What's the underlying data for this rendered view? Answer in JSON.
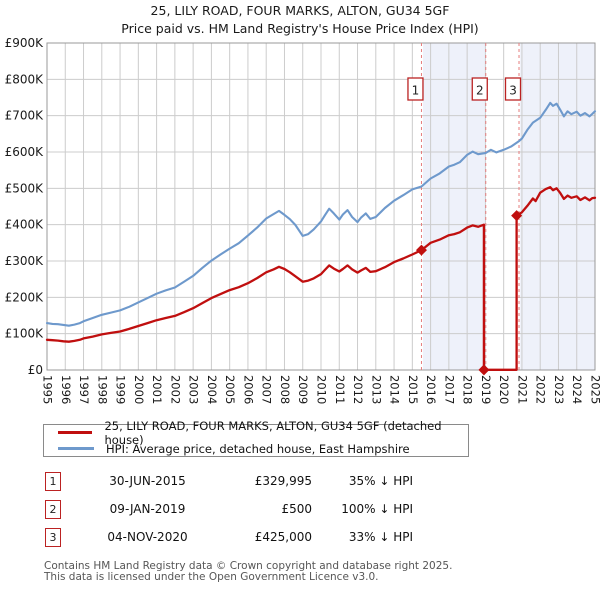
{
  "title": {
    "line1": "25, LILY ROAD, FOUR MARKS, ALTON, GU34 5GF",
    "line2": "Price paid vs. HM Land Registry's House Price Index (HPI)"
  },
  "chart_data": {
    "type": "line",
    "title": "25, LILY ROAD, FOUR MARKS, ALTON, GU34 5GF — Price paid vs. HPI",
    "xlabel": "",
    "ylabel": "",
    "xlim": [
      1995,
      2025
    ],
    "ylim": [
      0,
      900
    ],
    "values_unit": "GBP thousands",
    "grid": true,
    "x_ticks": [
      1995,
      1996,
      1997,
      1998,
      1999,
      2000,
      2001,
      2002,
      2003,
      2004,
      2005,
      2006,
      2007,
      2008,
      2009,
      2010,
      2011,
      2012,
      2013,
      2014,
      2015,
      2016,
      2017,
      2018,
      2019,
      2020,
      2021,
      2022,
      2023,
      2024,
      2025
    ],
    "y_ticks": [
      "£0",
      "£100K",
      "£200K",
      "£300K",
      "£400K",
      "£500K",
      "£600K",
      "£700K",
      "£800K",
      "£900K"
    ],
    "colors": {
      "property": "#c00f0f",
      "hpi": "#6e99cc",
      "shade": "#eef1fa",
      "sale_dash": "#e57d7d",
      "sale_box_border": "#bb2222",
      "grid": "#cccccc",
      "plot_border": "#999999",
      "axis_text": "#1a1a1a"
    },
    "shaded_regions": [
      [
        2015.58,
        2019.02
      ],
      [
        2020.9,
        2025.0
      ]
    ],
    "series": [
      {
        "name": "25, LILY ROAD, FOUR MARKS, ALTON, GU34 5GF (detached house)",
        "color": "#c00f0f",
        "width": 2.3,
        "points": [
          [
            1995,
            83
          ],
          [
            1995.3,
            82
          ],
          [
            1995.6,
            81
          ],
          [
            1995.9,
            79
          ],
          [
            1996.2,
            78
          ],
          [
            1996.5,
            80
          ],
          [
            1996.8,
            83
          ],
          [
            1997,
            87
          ],
          [
            1997.5,
            92
          ],
          [
            1998,
            98
          ],
          [
            1998.5,
            102
          ],
          [
            1999,
            106
          ],
          [
            1999.5,
            113
          ],
          [
            2000,
            121
          ],
          [
            2000.5,
            129
          ],
          [
            2001,
            137
          ],
          [
            2001.5,
            143
          ],
          [
            2002,
            149
          ],
          [
            2002.5,
            159
          ],
          [
            2003,
            170
          ],
          [
            2003.5,
            184
          ],
          [
            2004,
            198
          ],
          [
            2004.5,
            209
          ],
          [
            2005,
            220
          ],
          [
            2005.5,
            228
          ],
          [
            2006,
            239
          ],
          [
            2006.5,
            253
          ],
          [
            2007,
            269
          ],
          [
            2007.4,
            277
          ],
          [
            2007.7,
            284
          ],
          [
            2008,
            278
          ],
          [
            2008.3,
            269
          ],
          [
            2008.6,
            258
          ],
          [
            2009,
            243
          ],
          [
            2009.3,
            246
          ],
          [
            2009.6,
            252
          ],
          [
            2010,
            264
          ],
          [
            2010.2,
            275
          ],
          [
            2010.45,
            288
          ],
          [
            2010.7,
            279
          ],
          [
            2011,
            271
          ],
          [
            2011.2,
            278
          ],
          [
            2011.45,
            288
          ],
          [
            2011.7,
            277
          ],
          [
            2012,
            268
          ],
          [
            2012.2,
            274
          ],
          [
            2012.45,
            281
          ],
          [
            2012.7,
            270
          ],
          [
            2013,
            272
          ],
          [
            2013.5,
            283
          ],
          [
            2014,
            297
          ],
          [
            2014.5,
            307
          ],
          [
            2015,
            318
          ],
          [
            2015.5,
            330
          ],
          [
            2016,
            350
          ],
          [
            2016.5,
            359
          ],
          [
            2017,
            371
          ],
          [
            2017.3,
            374
          ],
          [
            2017.6,
            379
          ],
          [
            2018,
            392
          ],
          [
            2018.3,
            398
          ],
          [
            2018.6,
            394
          ],
          [
            2018.92,
            400
          ],
          [
            2018.92,
            0.5
          ],
          [
            2019.5,
            0.5
          ],
          [
            2020.2,
            0.5
          ],
          [
            2020.71,
            0.5
          ],
          [
            2020.71,
            425
          ],
          [
            2021,
            434
          ],
          [
            2021.3,
            452
          ],
          [
            2021.6,
            472
          ],
          [
            2021.75,
            465
          ],
          [
            2022,
            488
          ],
          [
            2022.3,
            498
          ],
          [
            2022.55,
            503
          ],
          [
            2022.7,
            495
          ],
          [
            2022.9,
            500
          ],
          [
            2023.1,
            487
          ],
          [
            2023.3,
            471
          ],
          [
            2023.5,
            480
          ],
          [
            2023.7,
            474
          ],
          [
            2024,
            478
          ],
          [
            2024.2,
            468
          ],
          [
            2024.45,
            475
          ],
          [
            2024.7,
            467
          ],
          [
            2024.85,
            473
          ],
          [
            2025,
            474
          ]
        ]
      },
      {
        "name": "HPI: Average price, detached house, East Hampshire",
        "color": "#6e99cc",
        "width": 2.1,
        "points": [
          [
            1995,
            129
          ],
          [
            1995.3,
            127
          ],
          [
            1995.6,
            126
          ],
          [
            1995.9,
            124
          ],
          [
            1996.2,
            122
          ],
          [
            1996.5,
            125
          ],
          [
            1996.8,
            129
          ],
          [
            1997,
            134
          ],
          [
            1997.5,
            143
          ],
          [
            1998,
            152
          ],
          [
            1998.5,
            158
          ],
          [
            1999,
            164
          ],
          [
            1999.5,
            174
          ],
          [
            2000,
            186
          ],
          [
            2000.5,
            198
          ],
          [
            2001,
            210
          ],
          [
            2001.5,
            219
          ],
          [
            2002,
            227
          ],
          [
            2002.5,
            243
          ],
          [
            2003,
            259
          ],
          [
            2003.5,
            281
          ],
          [
            2004,
            301
          ],
          [
            2004.5,
            318
          ],
          [
            2005,
            334
          ],
          [
            2005.5,
            349
          ],
          [
            2006,
            370
          ],
          [
            2006.5,
            392
          ],
          [
            2007,
            417
          ],
          [
            2007.4,
            429
          ],
          [
            2007.7,
            438
          ],
          [
            2008,
            427
          ],
          [
            2008.3,
            415
          ],
          [
            2008.6,
            399
          ],
          [
            2009,
            369
          ],
          [
            2009.3,
            374
          ],
          [
            2009.6,
            387
          ],
          [
            2010,
            409
          ],
          [
            2010.2,
            425
          ],
          [
            2010.45,
            444
          ],
          [
            2010.7,
            431
          ],
          [
            2011,
            414
          ],
          [
            2011.2,
            428
          ],
          [
            2011.45,
            440
          ],
          [
            2011.7,
            421
          ],
          [
            2012,
            407
          ],
          [
            2012.2,
            420
          ],
          [
            2012.45,
            431
          ],
          [
            2012.7,
            416
          ],
          [
            2013,
            421
          ],
          [
            2013.5,
            446
          ],
          [
            2014,
            466
          ],
          [
            2014.5,
            481
          ],
          [
            2015,
            497
          ],
          [
            2015.5,
            505
          ],
          [
            2016,
            527
          ],
          [
            2016.5,
            541
          ],
          [
            2017,
            560
          ],
          [
            2017.3,
            565
          ],
          [
            2017.6,
            572
          ],
          [
            2018,
            592
          ],
          [
            2018.3,
            601
          ],
          [
            2018.6,
            594
          ],
          [
            2019,
            597
          ],
          [
            2019.3,
            606
          ],
          [
            2019.6,
            599
          ],
          [
            2020,
            606
          ],
          [
            2020.4,
            615
          ],
          [
            2020.84,
            630
          ],
          [
            2021,
            637
          ],
          [
            2021.3,
            661
          ],
          [
            2021.6,
            681
          ],
          [
            2022,
            694
          ],
          [
            2022.3,
            716
          ],
          [
            2022.55,
            735
          ],
          [
            2022.7,
            727
          ],
          [
            2022.9,
            733
          ],
          [
            2023.1,
            716
          ],
          [
            2023.3,
            698
          ],
          [
            2023.5,
            712
          ],
          [
            2023.7,
            704
          ],
          [
            2024,
            711
          ],
          [
            2024.2,
            700
          ],
          [
            2024.45,
            707
          ],
          [
            2024.7,
            698
          ],
          [
            2024.85,
            705
          ],
          [
            2025,
            712
          ]
        ]
      }
    ],
    "sales": [
      {
        "num": "1",
        "line_year": 2015.5,
        "marker_year": 2015.5,
        "marker_value": 330,
        "date": "30-JUN-2015",
        "price_paid": 329995
      },
      {
        "num": "2",
        "line_year": 2019.02,
        "marker_year": 2018.92,
        "marker_value": 0.5,
        "date": "09-JAN-2019",
        "price_paid": 500
      },
      {
        "num": "3",
        "line_year": 2020.84,
        "marker_year": 2020.71,
        "marker_value": 425,
        "date": "04-NOV-2020",
        "price_paid": 425000
      }
    ],
    "legend_position": "bottom"
  },
  "legend": {
    "items": [
      {
        "label": "25, LILY ROAD, FOUR MARKS, ALTON, GU34 5GF (detached house)",
        "color": "#c00f0f"
      },
      {
        "label": "HPI: Average price, detached house, East Hampshire",
        "color": "#6e99cc"
      }
    ]
  },
  "transactions": [
    {
      "num": "1",
      "date": "30-JUN-2015",
      "price": "£329,995",
      "delta": "35% ↓ HPI"
    },
    {
      "num": "2",
      "date": "09-JAN-2019",
      "price": "£500",
      "delta": "100% ↓ HPI"
    },
    {
      "num": "3",
      "date": "04-NOV-2020",
      "price": "£425,000",
      "delta": "33% ↓ HPI"
    }
  ],
  "footer": {
    "line1": "Contains HM Land Registry data © Crown copyright and database right 2025.",
    "line2": "This data is licensed under the Open Government Licence v3.0."
  }
}
